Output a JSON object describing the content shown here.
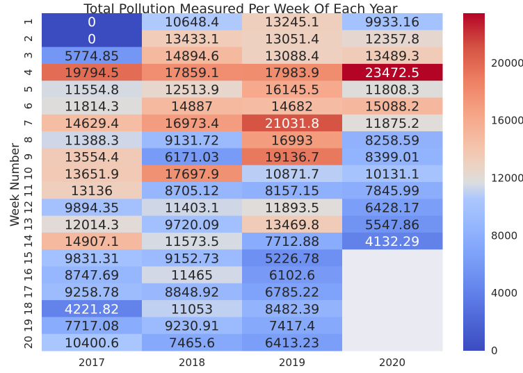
{
  "chart_data": {
    "type": "heatmap",
    "title": "Total Pollution Measured Per Week Of Each Year",
    "xlabel": "",
    "ylabel": "Week Number",
    "x_categories": [
      "2017",
      "2018",
      "2019",
      "2020"
    ],
    "y_categories": [
      "1",
      "2",
      "3",
      "4",
      "5",
      "6",
      "7",
      "8",
      "9",
      "10",
      "11",
      "12",
      "13",
      "14",
      "15",
      "16",
      "17",
      "18",
      "19",
      "20"
    ],
    "values": [
      [
        0,
        10648.4,
        13245.1,
        9933.16
      ],
      [
        0,
        13433.1,
        13051.4,
        12357.8
      ],
      [
        5774.85,
        14894.6,
        13088.4,
        13489.3
      ],
      [
        19794.5,
        17859.1,
        17983.9,
        23472.5
      ],
      [
        11554.8,
        12513.9,
        16145.5,
        11808.3
      ],
      [
        11814.3,
        14887,
        14682,
        15088.2
      ],
      [
        14629.4,
        16973.4,
        21031.8,
        11875.2
      ],
      [
        11388.3,
        9131.72,
        16993,
        8258.59
      ],
      [
        13554.4,
        6171.03,
        19136.7,
        8399.01
      ],
      [
        13651.9,
        17697.9,
        10871.7,
        10131.1
      ],
      [
        13136,
        8705.12,
        8157.15,
        7845.99
      ],
      [
        9894.35,
        11403.1,
        11893.5,
        6428.17
      ],
      [
        12014.3,
        9720.09,
        13469.8,
        5547.86
      ],
      [
        14907.1,
        11573.5,
        7712.88,
        4132.29
      ],
      [
        9831.31,
        9152.73,
        5226.78,
        null
      ],
      [
        8747.69,
        11465,
        6102.6,
        null
      ],
      [
        9258.78,
        8848.92,
        6785.22,
        null
      ],
      [
        4221.82,
        11053,
        8482.39,
        null
      ],
      [
        7717.08,
        9230.91,
        7417.4,
        null
      ],
      [
        10400.6,
        7465.6,
        6413.23,
        null
      ]
    ],
    "cell_labels": [
      [
        "0",
        "10648.4",
        "13245.1",
        "9933.16"
      ],
      [
        "0",
        "13433.1",
        "13051.4",
        "12357.8"
      ],
      [
        "5774.85",
        "14894.6",
        "13088.4",
        "13489.3"
      ],
      [
        "19794.5",
        "17859.1",
        "17983.9",
        "23472.5"
      ],
      [
        "11554.8",
        "12513.9",
        "16145.5",
        "11808.3"
      ],
      [
        "11814.3",
        "14887",
        "14682",
        "15088.2"
      ],
      [
        "14629.4",
        "16973.4",
        "21031.8",
        "11875.2"
      ],
      [
        "11388.3",
        "9131.72",
        "16993",
        "8258.59"
      ],
      [
        "13554.4",
        "6171.03",
        "19136.7",
        "8399.01"
      ],
      [
        "13651.9",
        "17697.9",
        "10871.7",
        "10131.1"
      ],
      [
        "13136",
        "8705.12",
        "8157.15",
        "7845.99"
      ],
      [
        "9894.35",
        "11403.1",
        "11893.5",
        "6428.17"
      ],
      [
        "12014.3",
        "9720.09",
        "13469.8",
        "5547.86"
      ],
      [
        "14907.1",
        "11573.5",
        "7712.88",
        "4132.29"
      ],
      [
        "9831.31",
        "9152.73",
        "5226.78",
        ""
      ],
      [
        "8747.69",
        "11465",
        "6102.6",
        ""
      ],
      [
        "9258.78",
        "8848.92",
        "6785.22",
        ""
      ],
      [
        "4221.82",
        "11053",
        "8482.39",
        ""
      ],
      [
        "7717.08",
        "9230.91",
        "7417.4",
        ""
      ],
      [
        "10400.6",
        "7465.6",
        "6413.23",
        ""
      ]
    ],
    "colormap": "coolwarm",
    "color_range": [
      0,
      23472.5
    ],
    "colorbar_ticks": [
      "0",
      "4000",
      "8000",
      "12000",
      "16000",
      "20000"
    ],
    "colorbar_tick_values": [
      0,
      4000,
      8000,
      12000,
      16000,
      20000
    ],
    "missing_color": "#eaeaf2",
    "grid": false,
    "colors": {
      "cool": "#3b4cc0",
      "neutral": "#dddddd",
      "warm": "#b40426"
    }
  }
}
